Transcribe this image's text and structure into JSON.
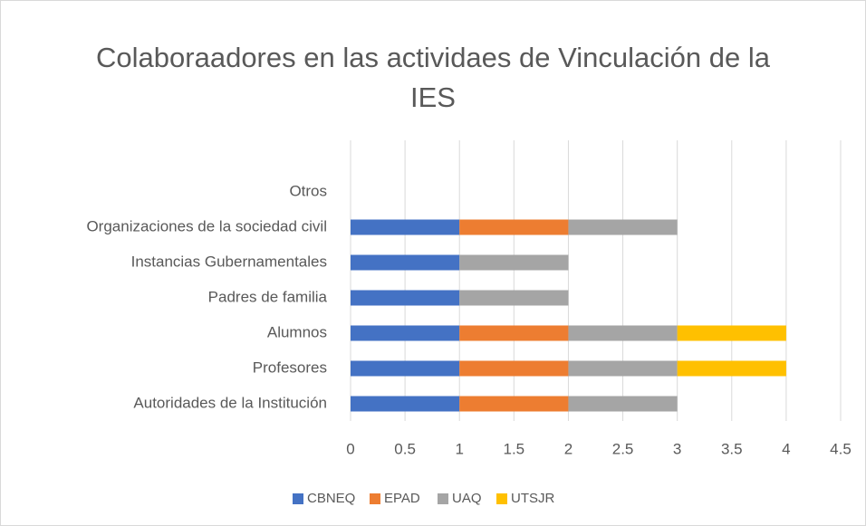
{
  "chart_data": {
    "type": "stacked_bar_horizontal",
    "title": "Colaboraadores en las actividaes de Vinculación de la IES",
    "categories": [
      "Autoridades de la Institución",
      "Profesores",
      "Alumnos",
      "Padres de familia",
      "Instancias Gubernamentales",
      "Organizaciones de la sociedad civil",
      "Otros"
    ],
    "series": [
      {
        "name": "CBNEQ",
        "color": "#4472c4",
        "values": [
          1,
          1,
          1,
          1,
          1,
          1,
          0
        ]
      },
      {
        "name": "EPAD",
        "color": "#ed7d31",
        "values": [
          1,
          1,
          1,
          0,
          0,
          1,
          0
        ]
      },
      {
        "name": "UAQ",
        "color": "#a5a5a5",
        "values": [
          1,
          1,
          1,
          1,
          1,
          1,
          0
        ]
      },
      {
        "name": "UTSJR",
        "color": "#ffc000",
        "values": [
          0,
          1,
          1,
          0,
          0,
          0,
          0
        ]
      }
    ],
    "xlim": [
      0,
      4.5
    ],
    "xticks": [
      0,
      0.5,
      1,
      1.5,
      2,
      2.5,
      3,
      3.5,
      4,
      4.5
    ],
    "grid": true,
    "legend": "bottom"
  }
}
